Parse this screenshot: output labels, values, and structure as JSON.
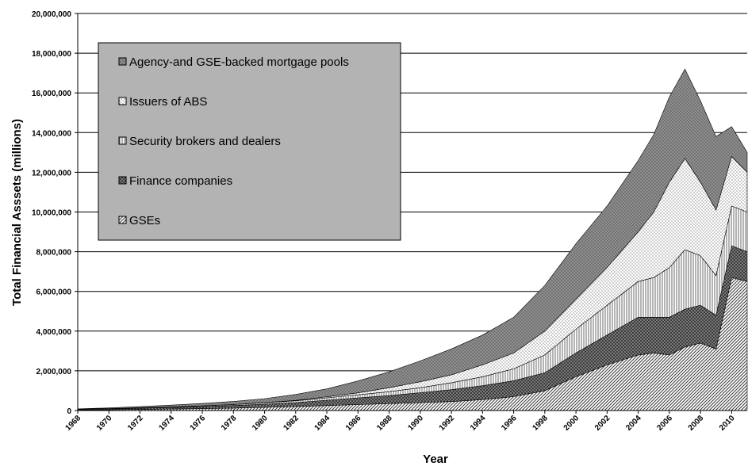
{
  "chart_data": {
    "type": "area",
    "stacked": true,
    "xlabel": "Year",
    "ylabel": "Total Financial Asssets (millions)",
    "ylim": [
      0,
      20000000
    ],
    "y_ticks": [
      "0",
      "2,000,000",
      "4,000,000",
      "6,000,000",
      "8,000,000",
      "10,000,000",
      "12,000,000",
      "14,000,000",
      "16,000,000",
      "18,000,000",
      "20,000,000"
    ],
    "x_ticks": [
      "1968",
      "1970",
      "1972",
      "1974",
      "1976",
      "1978",
      "1980",
      "1982",
      "1984",
      "1986",
      "1988",
      "1990",
      "1992",
      "1994",
      "1996",
      "1998",
      "2000",
      "2002",
      "2004",
      "2006",
      "2008",
      "2010"
    ],
    "grid": "horizontal",
    "legend_position": "top-left",
    "x": [
      1968,
      1970,
      1972,
      1974,
      1976,
      1978,
      1980,
      1982,
      1984,
      1986,
      1988,
      1990,
      1992,
      1994,
      1996,
      1998,
      2000,
      2002,
      2004,
      2005,
      2006,
      2007,
      2008,
      2009,
      2010,
      2011
    ],
    "series": [
      {
        "name": "GSEs",
        "pattern": "diagonal-hatch",
        "values": [
          25000,
          40000,
          55000,
          75000,
          95000,
          120000,
          160000,
          200000,
          250000,
          300000,
          350000,
          400000,
          450000,
          550000,
          700000,
          1000000,
          1700000,
          2300000,
          2800000,
          2900000,
          2800000,
          3200000,
          3400000,
          3100000,
          6700000,
          6500000
        ]
      },
      {
        "name": "Finance companies",
        "pattern": "dark-crosshatch",
        "values": [
          30000,
          45000,
          60000,
          80000,
          100000,
          130000,
          160000,
          200000,
          270000,
          340000,
          400000,
          500000,
          600000,
          700000,
          800000,
          900000,
          1200000,
          1500000,
          1900000,
          1800000,
          1900000,
          1900000,
          1900000,
          1700000,
          1600000,
          1500000
        ]
      },
      {
        "name": "Security brokers and dealers",
        "pattern": "vertical-lines",
        "values": [
          10000,
          15000,
          20000,
          25000,
          40000,
          50000,
          70000,
          90000,
          120000,
          150000,
          200000,
          250000,
          350000,
          450000,
          600000,
          900000,
          1200000,
          1500000,
          1800000,
          2000000,
          2500000,
          3000000,
          2500000,
          2000000,
          2000000,
          2000000
        ]
      },
      {
        "name": "Issuers of ABS",
        "pattern": "dots",
        "values": [
          0,
          0,
          0,
          0,
          0,
          5000,
          10000,
          20000,
          50000,
          100000,
          200000,
          300000,
          400000,
          600000,
          800000,
          1200000,
          1500000,
          1900000,
          2500000,
          3300000,
          4300000,
          4600000,
          3700000,
          3300000,
          2500000,
          2000000
        ]
      },
      {
        "name": "Agency-and GSE-backed mortgage pools",
        "pattern": "light-crosshatch",
        "values": [
          20000,
          30000,
          60000,
          90000,
          120000,
          150000,
          200000,
          300000,
          400000,
          600000,
          800000,
          1050000,
          1300000,
          1500000,
          1800000,
          2300000,
          2800000,
          3100000,
          3600000,
          3900000,
          4300000,
          4500000,
          4100000,
          3700000,
          1500000,
          1000000
        ]
      }
    ]
  }
}
